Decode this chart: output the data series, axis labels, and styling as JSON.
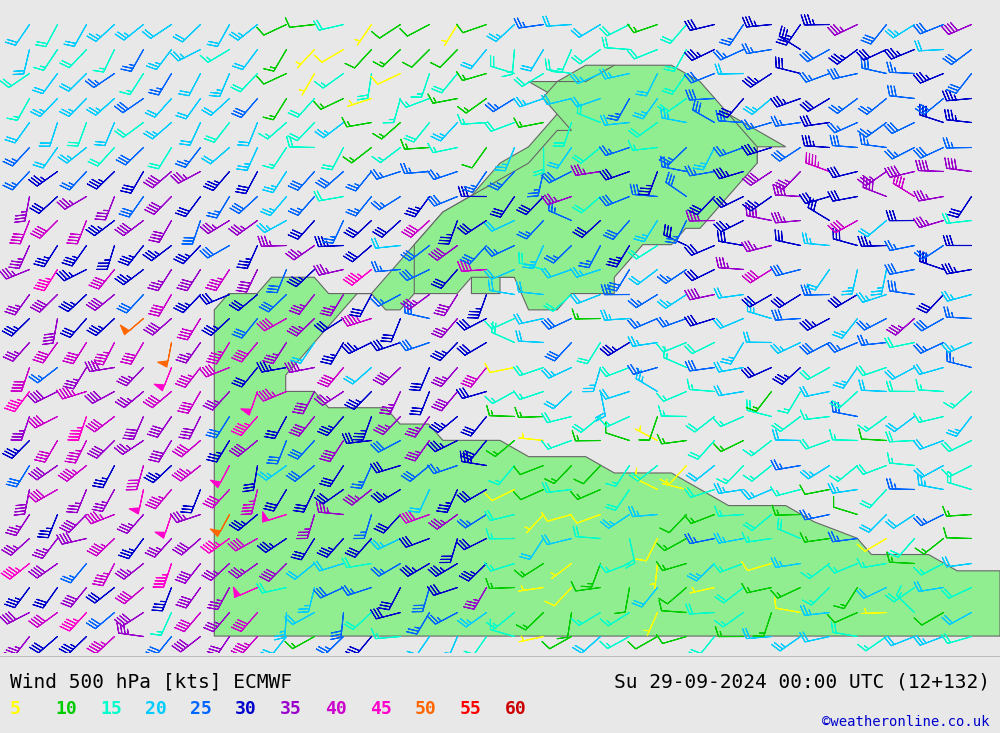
{
  "title_left": "Wind 500 hPa [kts] ECMWF",
  "title_right": "Su 29-09-2024 00:00 UTC (12+132)",
  "copyright": "©weatheronline.co.uk",
  "legend_values": [
    5,
    10,
    15,
    20,
    25,
    30,
    35,
    40,
    45,
    50,
    55,
    60
  ],
  "legend_colors": [
    "#ffff00",
    "#00cc00",
    "#00ffcc",
    "#00ccff",
    "#0066ff",
    "#0000cc",
    "#9900cc",
    "#cc00cc",
    "#ff00cc",
    "#ff6600",
    "#ff0000",
    "#cc0000"
  ],
  "bg_color": "#e8e8e8",
  "map_land_color": "#90ee90",
  "map_border_color": "#555555",
  "title_fontsize": 14,
  "legend_fontsize": 13,
  "copyright_fontsize": 10,
  "barb_density": 28,
  "fig_width": 10.0,
  "fig_height": 7.33
}
